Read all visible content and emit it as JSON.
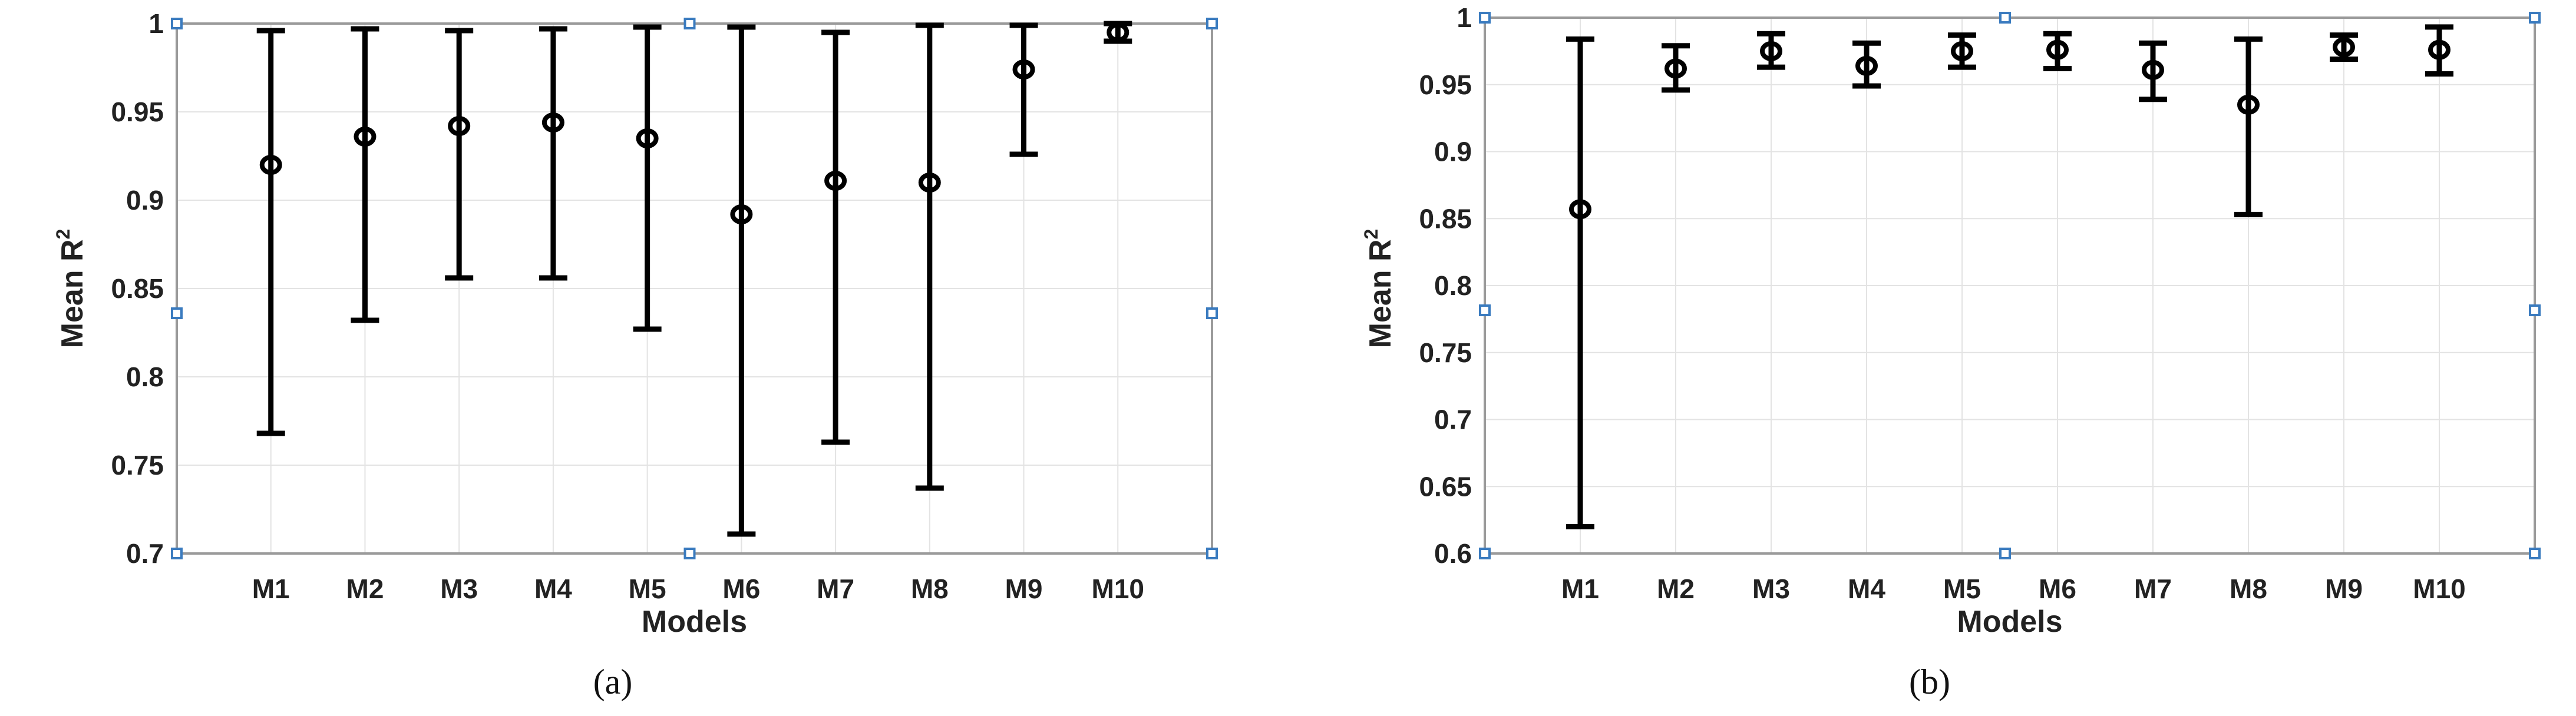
{
  "chart_data": [
    {
      "type": "errorbar",
      "panel_label": "(a)",
      "xlabel": "Models",
      "ylabel": "Mean R",
      "ylabel_superscript": "2",
      "categories": [
        "M1",
        "M2",
        "M3",
        "M4",
        "M5",
        "M6",
        "M7",
        "M8",
        "M9",
        "M10"
      ],
      "mean": [
        0.92,
        0.936,
        0.942,
        0.944,
        0.935,
        0.892,
        0.911,
        0.91,
        0.974,
        0.995
      ],
      "lower": [
        0.768,
        0.832,
        0.856,
        0.856,
        0.827,
        0.711,
        0.763,
        0.737,
        0.926,
        0.99
      ],
      "upper": [
        0.996,
        0.997,
        0.996,
        0.997,
        0.998,
        0.998,
        0.995,
        0.999,
        0.999,
        1.0
      ],
      "ylim": [
        0.7,
        1.0
      ],
      "yticks": [
        "0.7",
        "0.75",
        "0.8",
        "0.85",
        "0.9",
        "0.95",
        "1"
      ],
      "ytick_values": [
        0.7,
        0.75,
        0.8,
        0.85,
        0.9,
        0.95,
        1.0
      ],
      "grid": true,
      "colors": {
        "markers": "#000000",
        "corner_handles": "#3a7bbf",
        "frame": "#9a9a9a",
        "grid": "#e3e3e3"
      }
    },
    {
      "type": "errorbar",
      "panel_label": "(b)",
      "xlabel": "Models",
      "ylabel": "Mean R",
      "ylabel_superscript": "2",
      "categories": [
        "M1",
        "M2",
        "M3",
        "M4",
        "M5",
        "M6",
        "M7",
        "M8",
        "M9",
        "M10"
      ],
      "mean": [
        0.857,
        0.962,
        0.975,
        0.964,
        0.975,
        0.976,
        0.961,
        0.935,
        0.978,
        0.976
      ],
      "lower": [
        0.62,
        0.946,
        0.963,
        0.949,
        0.963,
        0.962,
        0.939,
        0.853,
        0.969,
        0.958
      ],
      "upper": [
        0.984,
        0.979,
        0.988,
        0.981,
        0.987,
        0.988,
        0.981,
        0.984,
        0.987,
        0.993
      ],
      "ylim": [
        0.6,
        1.0
      ],
      "yticks": [
        "0.6",
        "0.65",
        "0.7",
        "0.75",
        "0.8",
        "0.85",
        "0.9",
        "0.95",
        "1"
      ],
      "ytick_values": [
        0.6,
        0.65,
        0.7,
        0.75,
        0.8,
        0.85,
        0.9,
        0.95,
        1.0
      ],
      "grid": true,
      "colors": {
        "markers": "#000000",
        "corner_handles": "#3a7bbf",
        "frame": "#9a9a9a",
        "grid": "#e3e3e3"
      }
    }
  ]
}
